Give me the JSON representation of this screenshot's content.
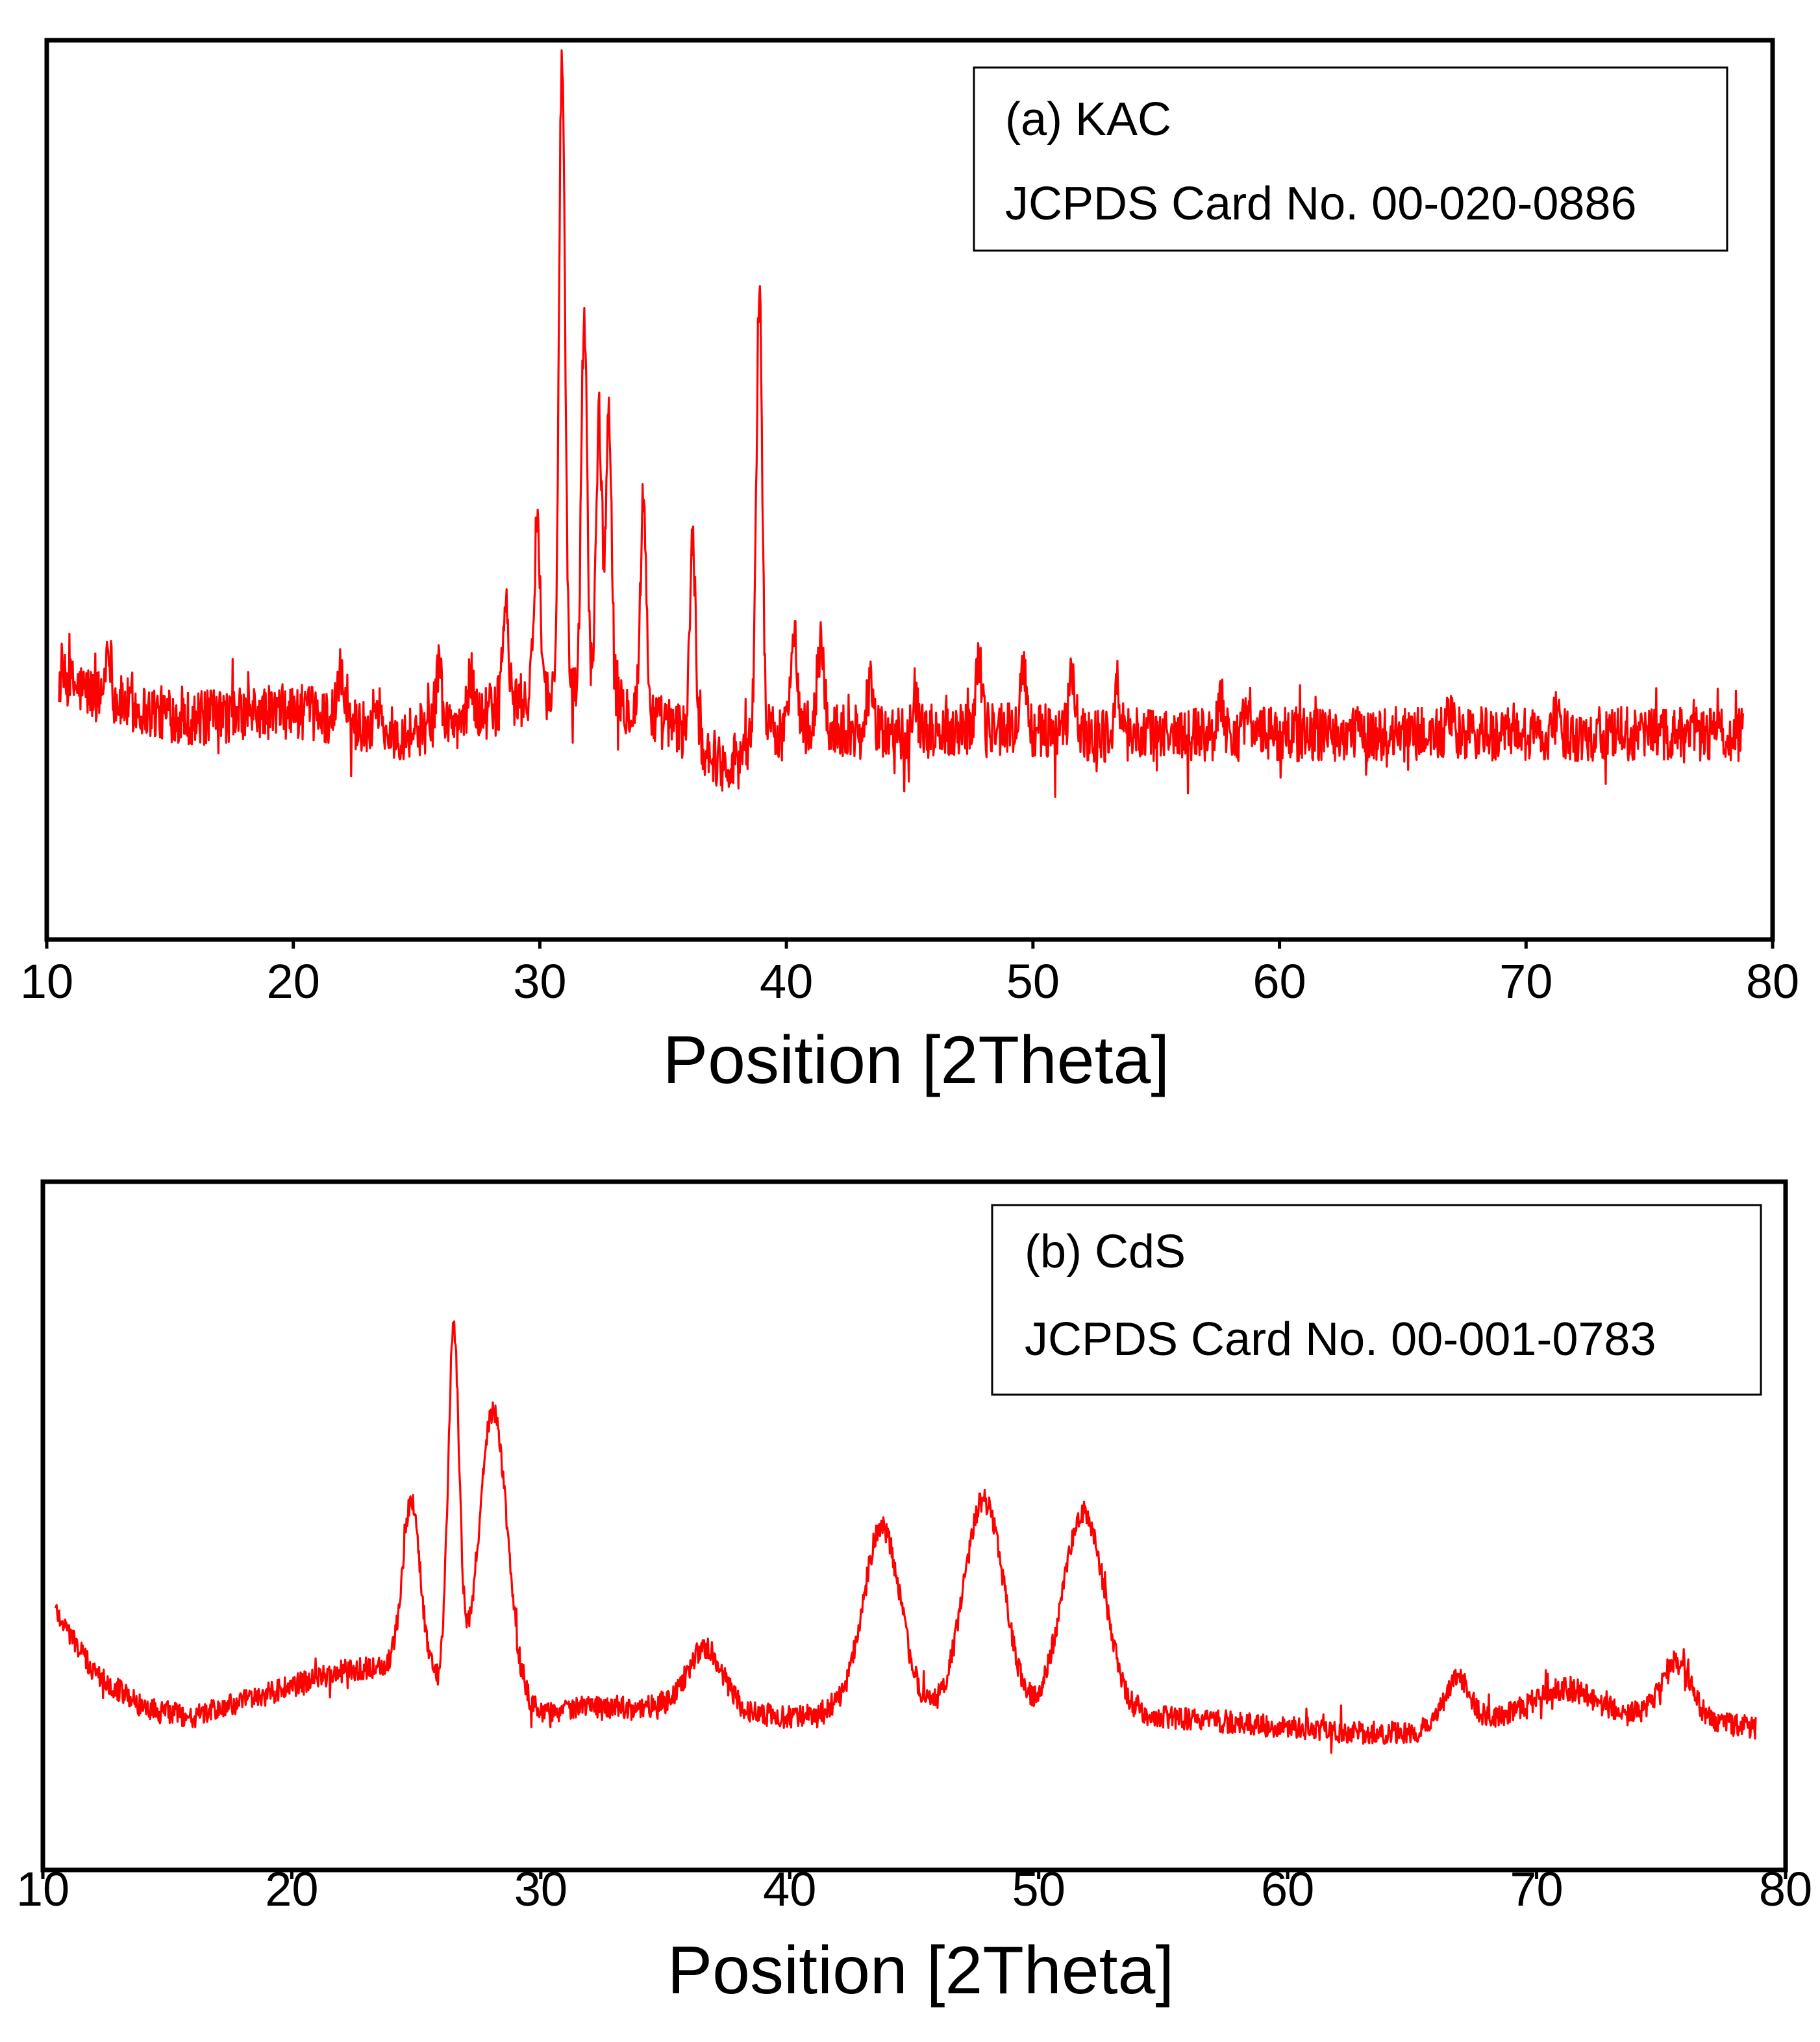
{
  "chart_data": [
    {
      "type": "line",
      "panel": "a",
      "title": "",
      "xlabel": "Position [2Theta]",
      "ylabel": "",
      "xlim": [
        10,
        80
      ],
      "ylim": [
        0,
        100
      ],
      "xticks": [
        10,
        20,
        30,
        40,
        50,
        60,
        70,
        80
      ],
      "legend": [
        "(a) KAC",
        "JCPDS Card No. 00-020-0886"
      ],
      "legend_position": "top-right",
      "series": [
        {
          "name": "KAC",
          "color": "#ff0000",
          "x_range": [
            10.5,
            78.8
          ],
          "baseline": [
            [
              10.5,
              21
            ],
            [
              12,
              19
            ],
            [
              14,
              17
            ],
            [
              16,
              16
            ],
            [
              20,
              17
            ],
            [
              22,
              16
            ],
            [
              24,
              14
            ],
            [
              26,
              15
            ],
            [
              28,
              17
            ],
            [
              30,
              19
            ],
            [
              32,
              19
            ],
            [
              34,
              17
            ],
            [
              36,
              14
            ],
            [
              37.5,
              10
            ],
            [
              39,
              14
            ],
            [
              41,
              15
            ],
            [
              44,
              14
            ],
            [
              48,
              15
            ],
            [
              52,
              14
            ],
            [
              56,
              14
            ],
            [
              60,
              14
            ],
            [
              65,
              14
            ],
            [
              70,
              14
            ],
            [
              75,
              14
            ],
            [
              78.8,
              14
            ]
          ],
          "noise_amplitude": 3.5,
          "peaks": [
            {
              "x": 12.5,
              "height": 7
            },
            {
              "x": 21.9,
              "height": 6
            },
            {
              "x": 23.4,
              "height": 4
            },
            {
              "x": 25.9,
              "height": 8
            },
            {
              "x": 27.2,
              "height": 5
            },
            {
              "x": 28.6,
              "height": 13
            },
            {
              "x": 29.9,
              "height": 23
            },
            {
              "x": 30.9,
              "height": 82
            },
            {
              "x": 31.8,
              "height": 48
            },
            {
              "x": 32.4,
              "height": 36
            },
            {
              "x": 32.8,
              "height": 37
            },
            {
              "x": 34.2,
              "height": 27
            },
            {
              "x": 36.2,
              "height": 25
            },
            {
              "x": 38.9,
              "height": 57
            },
            {
              "x": 40.3,
              "height": 14
            },
            {
              "x": 41.4,
              "height": 11
            },
            {
              "x": 43.4,
              "height": 6
            },
            {
              "x": 45.2,
              "height": 5
            },
            {
              "x": 47.8,
              "height": 9
            },
            {
              "x": 49.6,
              "height": 8
            },
            {
              "x": 51.6,
              "height": 8
            },
            {
              "x": 53.4,
              "height": 5
            },
            {
              "x": 57.6,
              "height": 5
            },
            {
              "x": 58.7,
              "height": 4
            },
            {
              "x": 66.9,
              "height": 2
            },
            {
              "x": 71.2,
              "height": 2
            }
          ]
        }
      ]
    },
    {
      "type": "line",
      "panel": "b",
      "title": "",
      "xlabel": "Position [2Theta]",
      "ylabel": "",
      "xlim": [
        10,
        80
      ],
      "ylim": [
        0,
        100
      ],
      "xticks": [
        10,
        20,
        30,
        40,
        50,
        60,
        70,
        80
      ],
      "legend": [
        "(b) CdS",
        "JCPDS Card No. 00-001-0783"
      ],
      "legend_position": "top-right",
      "series": [
        {
          "name": "CdS",
          "color": "#ff0000",
          "x_range": [
            10.5,
            78.8
          ],
          "baseline": [
            [
              10.5,
              33
            ],
            [
              12,
              21
            ],
            [
              14,
              14
            ],
            [
              16,
              12
            ],
            [
              18,
              15
            ],
            [
              20,
              18
            ],
            [
              22,
              21
            ],
            [
              24,
              22
            ],
            [
              26,
              20
            ],
            [
              28,
              17
            ],
            [
              30,
              13
            ],
            [
              32,
              14
            ],
            [
              35,
              14
            ],
            [
              38,
              13
            ],
            [
              40,
              12
            ],
            [
              42,
              13
            ],
            [
              44,
              13
            ],
            [
              50,
              12
            ],
            [
              55,
              12
            ],
            [
              58,
              11
            ],
            [
              60,
              10
            ],
            [
              62,
              9
            ],
            [
              65,
              9
            ],
            [
              67,
              11
            ],
            [
              70,
              13
            ],
            [
              72,
              14
            ],
            [
              75,
              12
            ],
            [
              78.8,
              10
            ]
          ],
          "noise_amplitude": 2.2,
          "peaks": [
            {
              "x": 24.8,
              "height": 33,
              "width": 0.35
            },
            {
              "x": 26.5,
              "height": 68,
              "width": 0.22
            },
            {
              "x": 28.1,
              "height": 55,
              "width": 0.55
            },
            {
              "x": 36.6,
              "height": 12,
              "width": 0.7
            },
            {
              "x": 43.7,
              "height": 36,
              "width": 0.75
            },
            {
              "x": 47.8,
              "height": 42,
              "width": 0.8
            },
            {
              "x": 51.8,
              "height": 40,
              "width": 0.85
            },
            {
              "x": 66.8,
              "height": 9,
              "width": 0.5
            },
            {
              "x": 70.9,
              "height": 4,
              "width": 1.0
            },
            {
              "x": 75.6,
              "height": 11,
              "width": 0.6
            }
          ]
        }
      ]
    }
  ]
}
